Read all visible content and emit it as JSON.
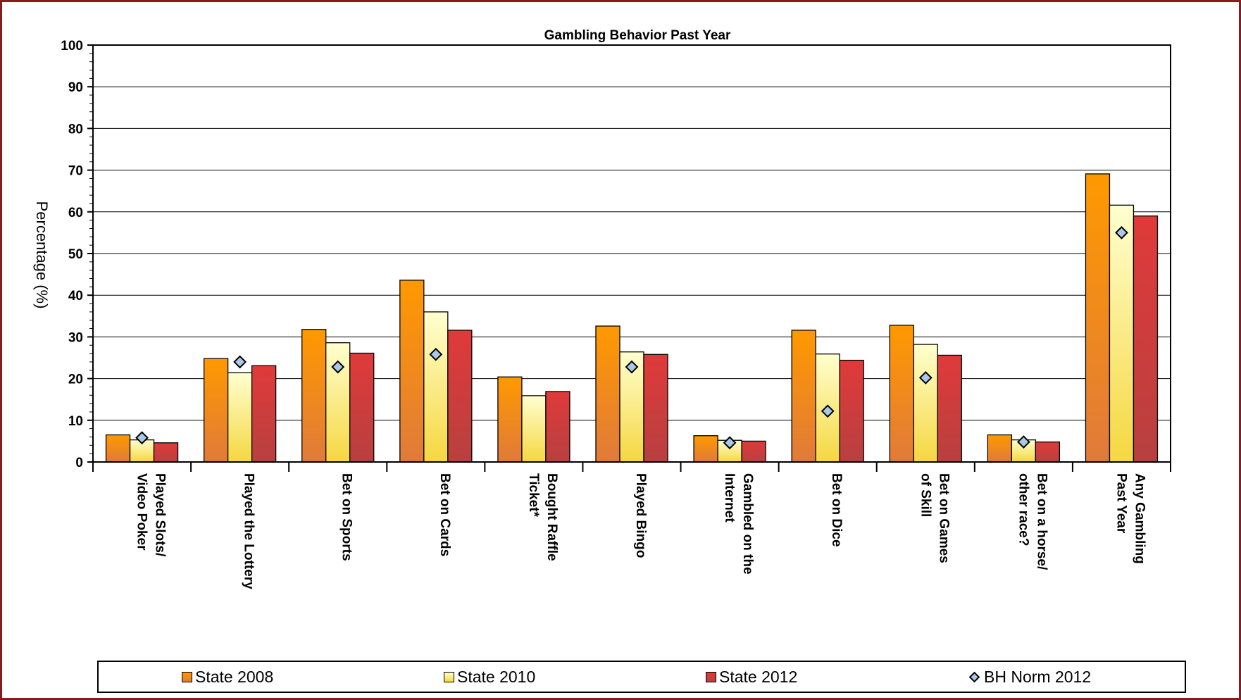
{
  "chart_data": {
    "type": "bar",
    "title": "Gambling Behavior Past Year",
    "xlabel": "",
    "ylabel": "Percentage (%)",
    "ylim": [
      0,
      100
    ],
    "yticks": [
      0,
      10,
      20,
      30,
      40,
      50,
      60,
      70,
      80,
      90,
      100
    ],
    "grid": true,
    "legend_position": "bottom",
    "categories": [
      [
        "Played Slots/",
        "Video Poker"
      ],
      [
        "Played the Lottery"
      ],
      [
        "Bet on Sports"
      ],
      [
        "Bet on Cards"
      ],
      [
        "Bought Raffle",
        "Ticket*"
      ],
      [
        "Played Bingo"
      ],
      [
        "Gambled on the",
        "Internet"
      ],
      [
        "Bet on Dice"
      ],
      [
        "Bet on Games",
        "of Skill"
      ],
      [
        "Bet on a horse/",
        "other race?"
      ],
      [
        "Any Gambling",
        "Past Year"
      ]
    ],
    "series": [
      {
        "name": "State 2008",
        "kind": "bar",
        "color_top": "#ff9900",
        "color_bottom": "#e07a3a",
        "values": [
          6.5,
          24.8,
          31.8,
          43.6,
          20.4,
          32.6,
          6.3,
          31.6,
          32.8,
          6.5,
          69.1
        ]
      },
      {
        "name": "State 2010",
        "kind": "bar",
        "color_top": "#ffffd0",
        "color_bottom": "#f5d740",
        "values": [
          5.3,
          21.4,
          28.6,
          36.0,
          15.9,
          26.4,
          5.2,
          25.9,
          28.2,
          5.3,
          61.6
        ]
      },
      {
        "name": "State 2012",
        "kind": "bar",
        "color_top": "#e03a3a",
        "color_bottom": "#b84040",
        "values": [
          4.6,
          23.1,
          26.1,
          31.6,
          16.9,
          25.8,
          5.0,
          24.4,
          25.6,
          4.8,
          59.0
        ]
      },
      {
        "name": "BH Norm 2012",
        "kind": "marker",
        "color": "#a9c8e8",
        "values": [
          5.8,
          24.0,
          22.8,
          25.8,
          null,
          22.8,
          4.6,
          12.2,
          20.2,
          4.8,
          55.0
        ]
      }
    ]
  }
}
